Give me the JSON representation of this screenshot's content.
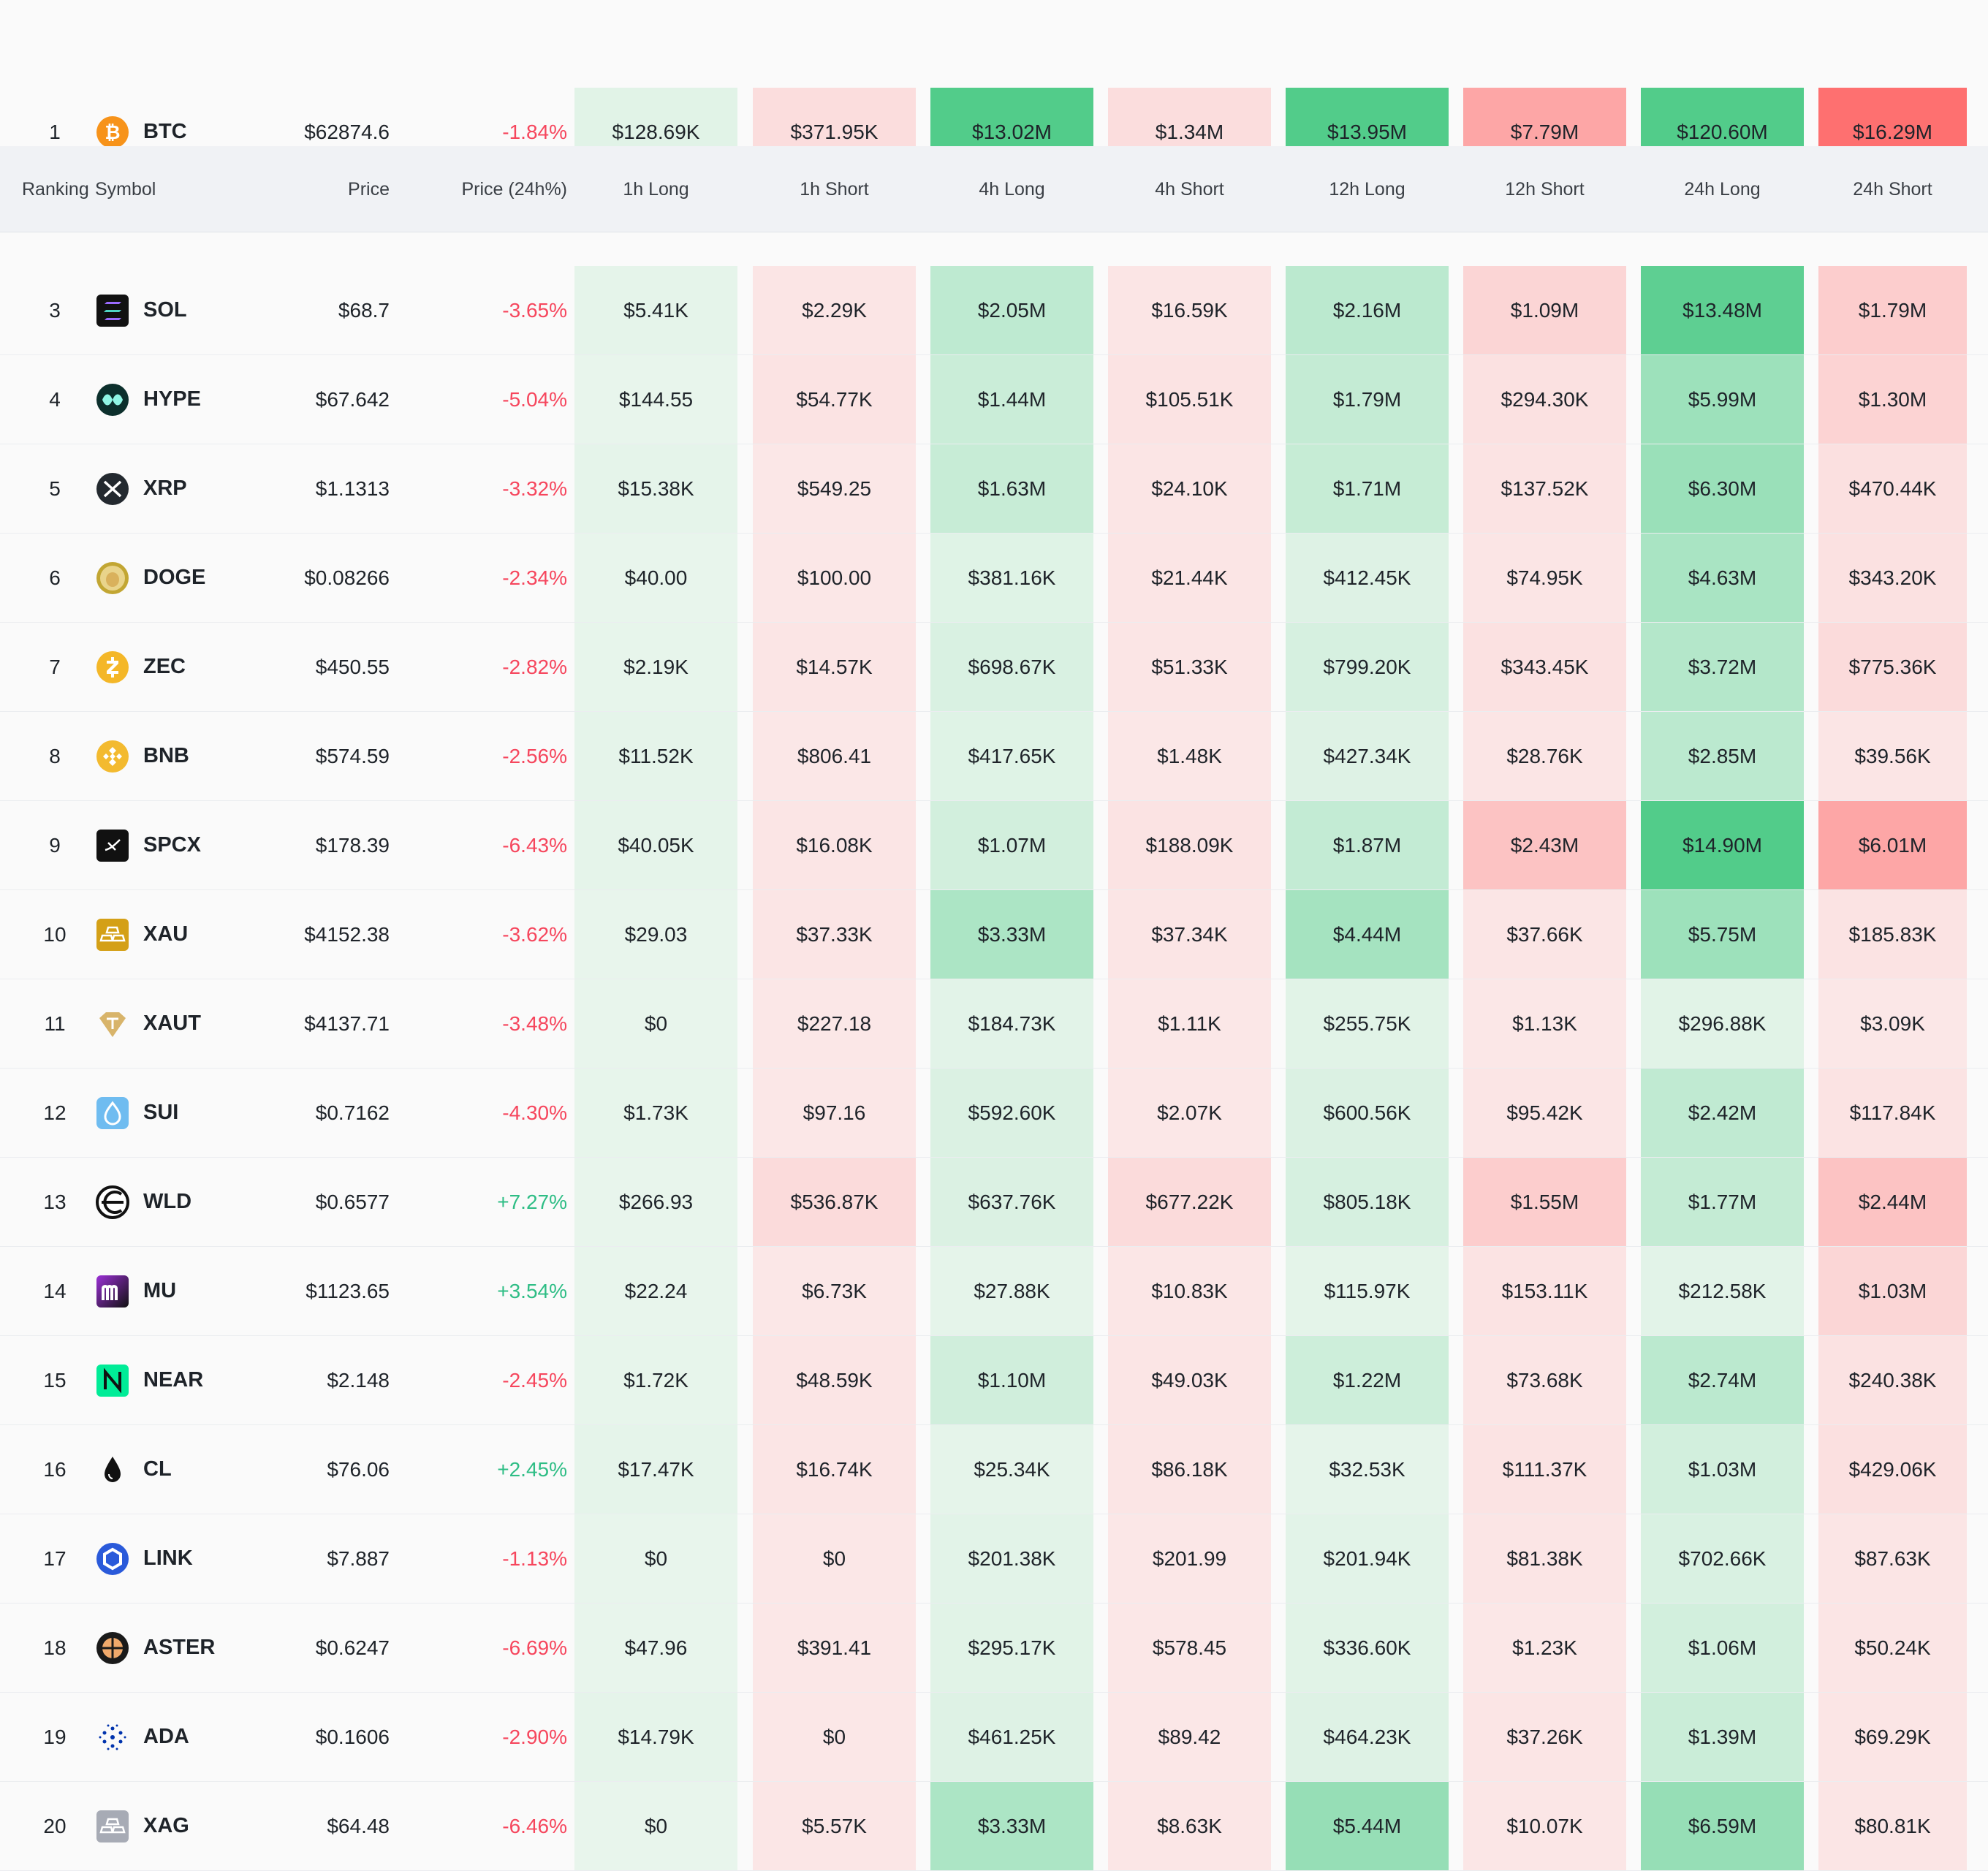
{
  "headers": {
    "ranking": "Ranking",
    "symbol": "Symbol",
    "price": "Price",
    "change": "Price (24h%)",
    "h1_long": "1h Long",
    "h1_short": "1h Short",
    "h4_long": "4h Long",
    "h4_short": "4h Short",
    "h12_long": "12h Long",
    "h12_short": "12h Short",
    "h24_long": "24h Long",
    "h24_short": "24h Short"
  },
  "colors": {
    "long_base": "#e8f5ec",
    "long_strong": "#52cc8a",
    "short_base": "#fbe7e7",
    "short_strong": "#fe7070",
    "positive_text": "#2ebd85",
    "negative_text": "#f6465d"
  },
  "rows": [
    {
      "rank": "1",
      "symbol": "BTC",
      "icon": "btc-icon",
      "price": "$62874.6",
      "change": "-1.84%",
      "change_dir": "neg",
      "values": [
        "$128.69K",
        "$371.95K",
        "$13.02M",
        "$1.34M",
        "$13.95M",
        "$7.79M",
        "$120.60M",
        "$16.29M"
      ],
      "levels": [
        0.05,
        0.08,
        1.0,
        0.08,
        1.0,
        0.55,
        1.0,
        1.0
      ]
    },
    {
      "rank": "3",
      "symbol": "SOL",
      "icon": "sol-icon",
      "price": "$68.7",
      "change": "-3.65%",
      "change_dir": "neg",
      "values": [
        "$5.41K",
        "$2.29K",
        "$2.05M",
        "$16.59K",
        "$2.16M",
        "$1.09M",
        "$13.48M",
        "$1.79M"
      ],
      "levels": [
        0.02,
        0.02,
        0.28,
        0.02,
        0.3,
        0.15,
        0.92,
        0.22
      ]
    },
    {
      "rank": "4",
      "symbol": "HYPE",
      "icon": "hype-icon",
      "price": "$67.642",
      "change": "-5.04%",
      "change_dir": "neg",
      "values": [
        "$144.55",
        "$54.77K",
        "$1.44M",
        "$105.51K",
        "$1.79M",
        "$294.30K",
        "$5.99M",
        "$1.30M"
      ],
      "levels": [
        0.0,
        0.03,
        0.2,
        0.03,
        0.24,
        0.05,
        0.5,
        0.17
      ]
    },
    {
      "rank": "5",
      "symbol": "XRP",
      "icon": "xrp-icon",
      "price": "$1.1313",
      "change": "-3.32%",
      "change_dir": "neg",
      "values": [
        "$15.38K",
        "$549.25",
        "$1.63M",
        "$24.10K",
        "$1.71M",
        "$137.52K",
        "$6.30M",
        "$470.44K"
      ],
      "levels": [
        0.02,
        0.0,
        0.22,
        0.02,
        0.23,
        0.03,
        0.52,
        0.06
      ]
    },
    {
      "rank": "6",
      "symbol": "DOGE",
      "icon": "doge-icon",
      "price": "$0.08266",
      "change": "-2.34%",
      "change_dir": "neg",
      "values": [
        "$40.00",
        "$100.00",
        "$381.16K",
        "$21.44K",
        "$412.45K",
        "$74.95K",
        "$4.63M",
        "$343.20K"
      ],
      "levels": [
        0.0,
        0.0,
        0.06,
        0.02,
        0.07,
        0.02,
        0.42,
        0.05
      ]
    },
    {
      "rank": "7",
      "symbol": "ZEC",
      "icon": "zec-icon",
      "price": "$450.55",
      "change": "-2.82%",
      "change_dir": "neg",
      "values": [
        "$2.19K",
        "$14.57K",
        "$698.67K",
        "$51.33K",
        "$799.20K",
        "$343.45K",
        "$3.72M",
        "$775.36K"
      ],
      "levels": [
        0.01,
        0.02,
        0.1,
        0.02,
        0.12,
        0.05,
        0.35,
        0.1
      ]
    },
    {
      "rank": "8",
      "symbol": "BNB",
      "icon": "bnb-icon",
      "price": "$574.59",
      "change": "-2.56%",
      "change_dir": "neg",
      "values": [
        "$11.52K",
        "$806.41",
        "$417.65K",
        "$1.48K",
        "$427.34K",
        "$28.76K",
        "$2.85M",
        "$39.56K"
      ],
      "levels": [
        0.02,
        0.0,
        0.06,
        0.0,
        0.07,
        0.02,
        0.3,
        0.02
      ]
    },
    {
      "rank": "9",
      "symbol": "SPCX",
      "icon": "spcx-icon",
      "price": "$178.39",
      "change": "-6.43%",
      "change_dir": "neg",
      "values": [
        "$40.05K",
        "$16.08K",
        "$1.07M",
        "$188.09K",
        "$1.87M",
        "$2.43M",
        "$14.90M",
        "$6.01M"
      ],
      "levels": [
        0.02,
        0.02,
        0.15,
        0.03,
        0.25,
        0.3,
        1.0,
        0.55
      ]
    },
    {
      "rank": "10",
      "symbol": "XAU",
      "icon": "xau-icon",
      "price": "$4152.38",
      "change": "-3.62%",
      "change_dir": "neg",
      "values": [
        "$29.03",
        "$37.33K",
        "$3.33M",
        "$37.34K",
        "$4.44M",
        "$37.66K",
        "$5.75M",
        "$185.83K"
      ],
      "levels": [
        0.0,
        0.02,
        0.4,
        0.02,
        0.45,
        0.02,
        0.5,
        0.03
      ]
    },
    {
      "rank": "11",
      "symbol": "XAUT",
      "icon": "xaut-icon",
      "price": "$4137.71",
      "change": "-3.48%",
      "change_dir": "neg",
      "values": [
        "$0",
        "$227.18",
        "$184.73K",
        "$1.11K",
        "$255.75K",
        "$1.13K",
        "$296.88K",
        "$3.09K"
      ],
      "levels": [
        0.0,
        0.0,
        0.04,
        0.0,
        0.05,
        0.0,
        0.05,
        0.0
      ]
    },
    {
      "rank": "12",
      "symbol": "SUI",
      "icon": "sui-icon",
      "price": "$0.7162",
      "change": "-4.30%",
      "change_dir": "neg",
      "values": [
        "$1.73K",
        "$97.16",
        "$592.60K",
        "$2.07K",
        "$600.56K",
        "$95.42K",
        "$2.42M",
        "$117.84K"
      ],
      "levels": [
        0.01,
        0.0,
        0.09,
        0.0,
        0.09,
        0.02,
        0.27,
        0.03
      ]
    },
    {
      "rank": "13",
      "symbol": "WLD",
      "icon": "wld-icon",
      "price": "$0.6577",
      "change": "+7.27%",
      "change_dir": "pos",
      "values": [
        "$266.93",
        "$536.87K",
        "$637.76K",
        "$677.22K",
        "$805.18K",
        "$1.55M",
        "$1.77M",
        "$2.44M"
      ],
      "levels": [
        0.0,
        0.1,
        0.09,
        0.1,
        0.12,
        0.22,
        0.24,
        0.3
      ]
    },
    {
      "rank": "14",
      "symbol": "MU",
      "icon": "mu-icon",
      "price": "$1123.65",
      "change": "+3.54%",
      "change_dir": "pos",
      "values": [
        "$22.24",
        "$6.73K",
        "$27.88K",
        "$10.83K",
        "$115.97K",
        "$153.11K",
        "$212.58K",
        "$1.03M"
      ],
      "levels": [
        0.0,
        0.0,
        0.02,
        0.01,
        0.03,
        0.03,
        0.04,
        0.14
      ]
    },
    {
      "rank": "15",
      "symbol": "NEAR",
      "icon": "near-icon",
      "price": "$2.148",
      "change": "-2.45%",
      "change_dir": "neg",
      "values": [
        "$1.72K",
        "$48.59K",
        "$1.10M",
        "$49.03K",
        "$1.22M",
        "$73.68K",
        "$2.74M",
        "$240.38K"
      ],
      "levels": [
        0.01,
        0.02,
        0.16,
        0.02,
        0.18,
        0.02,
        0.3,
        0.04
      ]
    },
    {
      "rank": "16",
      "symbol": "CL",
      "icon": "cl-icon",
      "price": "$76.06",
      "change": "+2.45%",
      "change_dir": "pos",
      "values": [
        "$17.47K",
        "$16.74K",
        "$25.34K",
        "$86.18K",
        "$32.53K",
        "$111.37K",
        "$1.03M",
        "$429.06K"
      ],
      "levels": [
        0.02,
        0.02,
        0.02,
        0.02,
        0.02,
        0.03,
        0.15,
        0.06
      ]
    },
    {
      "rank": "17",
      "symbol": "LINK",
      "icon": "link-icon",
      "price": "$7.887",
      "change": "-1.13%",
      "change_dir": "neg",
      "values": [
        "$0",
        "$0",
        "$201.38K",
        "$201.99",
        "$201.94K",
        "$81.38K",
        "$702.66K",
        "$87.63K"
      ],
      "levels": [
        0.0,
        0.0,
        0.04,
        0.0,
        0.04,
        0.02,
        0.1,
        0.02
      ]
    },
    {
      "rank": "18",
      "symbol": "ASTER",
      "icon": "aster-icon",
      "price": "$0.6247",
      "change": "-6.69%",
      "change_dir": "neg",
      "values": [
        "$47.96",
        "$391.41",
        "$295.17K",
        "$578.45",
        "$336.60K",
        "$1.23K",
        "$1.06M",
        "$50.24K"
      ],
      "levels": [
        0.0,
        0.0,
        0.05,
        0.0,
        0.05,
        0.0,
        0.15,
        0.02
      ]
    },
    {
      "rank": "19",
      "symbol": "ADA",
      "icon": "ada-icon",
      "price": "$0.1606",
      "change": "-2.90%",
      "change_dir": "neg",
      "values": [
        "$14.79K",
        "$0",
        "$461.25K",
        "$89.42",
        "$464.23K",
        "$37.26K",
        "$1.39M",
        "$69.29K"
      ],
      "levels": [
        0.02,
        0.0,
        0.07,
        0.0,
        0.07,
        0.02,
        0.2,
        0.02
      ]
    },
    {
      "rank": "20",
      "symbol": "XAG",
      "icon": "xag-icon",
      "price": "$64.48",
      "change": "-6.46%",
      "change_dir": "neg",
      "values": [
        "$0",
        "$5.57K",
        "$3.33M",
        "$8.63K",
        "$5.44M",
        "$10.07K",
        "$6.59M",
        "$80.81K"
      ],
      "levels": [
        0.0,
        0.01,
        0.4,
        0.01,
        0.55,
        0.01,
        0.55,
        0.02
      ]
    }
  ]
}
